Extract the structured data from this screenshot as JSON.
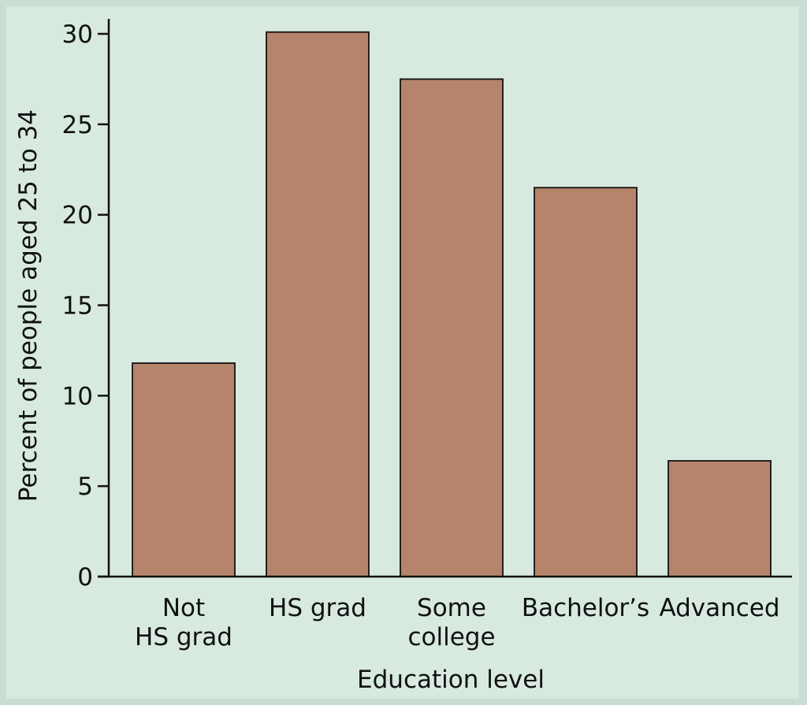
{
  "chart_data": {
    "type": "bar",
    "categories": [
      [
        "Not",
        "HS grad"
      ],
      [
        "HS grad"
      ],
      [
        "Some",
        "college"
      ],
      [
        "Bachelor’s"
      ],
      [
        "Advanced"
      ]
    ],
    "values": [
      11.8,
      30.1,
      27.5,
      21.5,
      6.4
    ],
    "xlabel": "Education level",
    "ylabel": "Percent of people aged 25 to 34",
    "ylim": [
      0,
      30
    ],
    "yticks": [
      0,
      5,
      10,
      15,
      20,
      25,
      30
    ],
    "grid": false,
    "bar_color": "#b5846a",
    "background_color": "#d8e9e0",
    "border_color": "#c9ddd2"
  }
}
